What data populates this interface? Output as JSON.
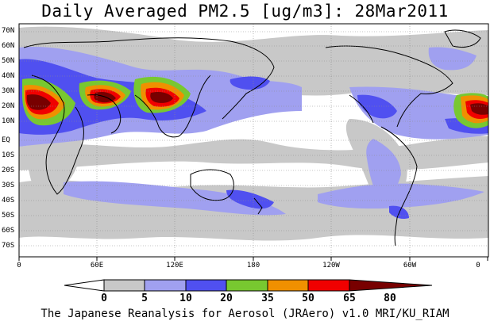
{
  "title": "Daily Averaged PM2.5 [ug/m3]: 28Mar2011",
  "footer": "The Japanese Reanalysis for Aerosol (JRAero) v1.0 MRI/KU_RIAM",
  "latitude_labels": [
    "70N",
    "60N",
    "50N",
    "40N",
    "30N",
    "20N",
    "10N",
    "EQ",
    "10S",
    "20S",
    "30S",
    "40S",
    "50S",
    "60S",
    "70S"
  ],
  "longitude_labels": [
    "0",
    "60E",
    "120E",
    "180",
    "120W",
    "60W",
    "0"
  ],
  "legend": {
    "levels": [
      "0",
      "5",
      "10",
      "20",
      "35",
      "50",
      "65",
      "80"
    ],
    "colors": [
      "#ffffff",
      "#c8c8c8",
      "#a0a0f0",
      "#5050f0",
      "#78c830",
      "#f09000",
      "#f00000",
      "#780000"
    ]
  },
  "map": {
    "ocean_color": "#ffffff",
    "grid_style": "dotted",
    "projection": "cylindrical equidistant"
  }
}
